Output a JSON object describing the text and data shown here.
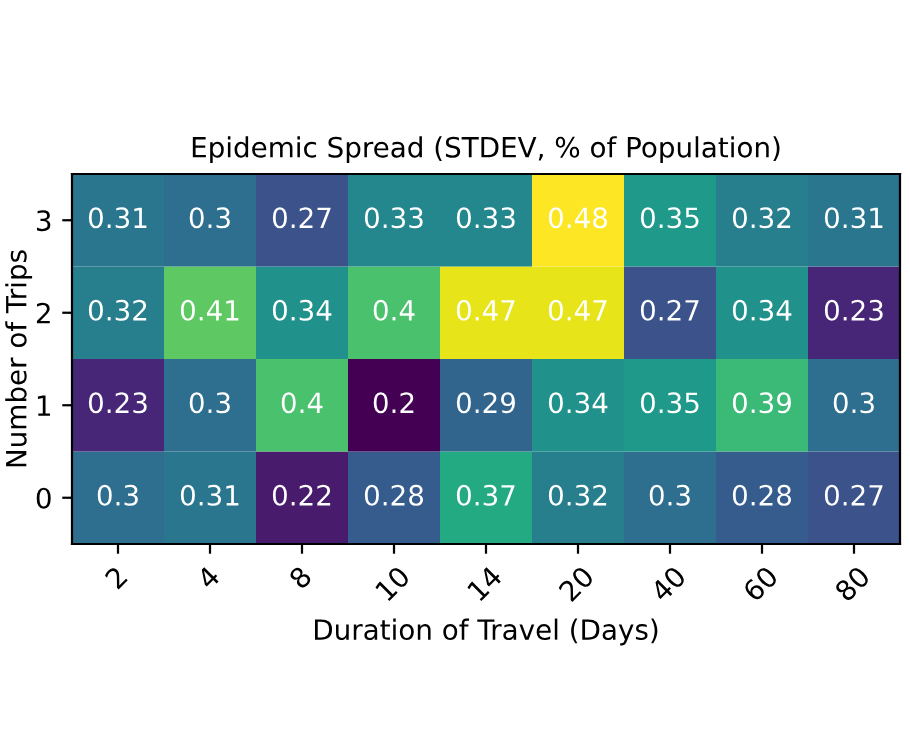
{
  "chart_data": {
    "type": "heatmap",
    "title": "Epidemic Spread (STDEV, % of Population)",
    "xlabel": "Duration of Travel (Days)",
    "ylabel": "Number of Trips",
    "categories": [
      "2",
      "4",
      "8",
      "10",
      "14",
      "20",
      "40",
      "60",
      "80"
    ],
    "y_categories": [
      "3",
      "2",
      "1",
      "0"
    ],
    "cells": [
      [
        0.31,
        0.3,
        0.27,
        0.33,
        0.33,
        0.48,
        0.35,
        0.32,
        0.31
      ],
      [
        0.32,
        0.41,
        0.34,
        0.4,
        0.47,
        0.47,
        0.27,
        0.34,
        0.23
      ],
      [
        0.23,
        0.3,
        0.4,
        0.2,
        0.29,
        0.34,
        0.35,
        0.39,
        0.3
      ],
      [
        0.3,
        0.31,
        0.22,
        0.28,
        0.37,
        0.32,
        0.3,
        0.28,
        0.27
      ]
    ],
    "data_labels": true,
    "grid": false
  }
}
